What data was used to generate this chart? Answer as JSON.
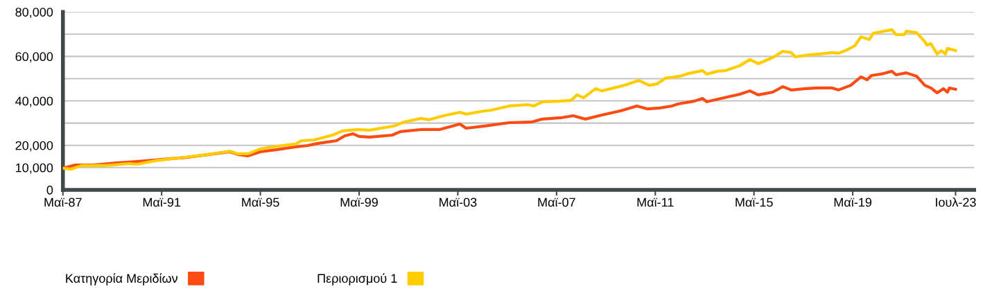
{
  "chart_data": {
    "type": "line",
    "legend": "bottom left",
    "grid": "y",
    "marker": "none",
    "line_style": "solid",
    "xlim": [
      "1987-05",
      "2024-04"
    ],
    "xticks": [
      {
        "value": "1987-05",
        "label": "Μαϊ-87"
      },
      {
        "value": "1991-05",
        "label": "Μαϊ-91"
      },
      {
        "value": "1995-05",
        "label": "Μαϊ-95"
      },
      {
        "value": "1999-05",
        "label": "Μαϊ-99"
      },
      {
        "value": "2003-05",
        "label": "Μαϊ-03"
      },
      {
        "value": "2007-05",
        "label": "Μαϊ-07"
      },
      {
        "value": "2011-05",
        "label": "Μαϊ-11"
      },
      {
        "value": "2015-05",
        "label": "Μαϊ-15"
      },
      {
        "value": "2019-05",
        "label": "Μαϊ-19"
      },
      {
        "value": "2023-07",
        "label": "Ιουλ-23"
      }
    ],
    "ylim": [
      0,
      80000
    ],
    "yticks": [
      0,
      {
        "value": 10000,
        "label": "10,000"
      },
      {
        "value": 20000,
        "label": "20,000"
      },
      {
        "value": 30000,
        "label": null
      },
      {
        "value": 40000,
        "label": "40,000"
      },
      {
        "value": 50000,
        "label": null
      },
      {
        "value": 60000,
        "label": "60,000"
      },
      {
        "value": 70000,
        "label": null
      },
      {
        "value": 80000,
        "label": "80,000"
      }
    ],
    "series": [
      {
        "name": "Κατηγορία Μεριδίων",
        "color": "#fc4c16",
        "x": [
          "1987-05",
          "1987-11",
          "1988-08",
          "1989-07",
          "1990-06",
          "1991-06",
          "1992-05",
          "1993-04",
          "1994-02",
          "1994-06",
          "1994-11",
          "1995-05",
          "1996-01",
          "1996-10",
          "1997-04",
          "1997-09",
          "1998-06",
          "1998-10",
          "1999-02",
          "1999-05",
          "1999-10",
          "2000-09",
          "2001-01",
          "2001-11",
          "2002-08",
          "2003-06",
          "2003-09",
          "2004-06",
          "2005-06",
          "2006-05",
          "2006-10",
          "2007-07",
          "2008-01",
          "2008-07",
          "2009-03",
          "2009-12",
          "2010-08",
          "2011-01",
          "2011-07",
          "2012-01",
          "2012-04",
          "2012-12",
          "2013-04",
          "2013-06",
          "2014-01",
          "2014-10",
          "2015-03",
          "2015-07",
          "2016-02",
          "2016-07",
          "2016-11",
          "2017-06",
          "2017-12",
          "2018-07",
          "2018-10",
          "2019-04",
          "2019-09",
          "2019-12",
          "2020-02",
          "2020-08",
          "2020-12",
          "2021-02",
          "2021-07",
          "2021-12",
          "2022-04",
          "2022-07",
          "2022-10",
          "2023-01",
          "2023-03",
          "2023-04",
          "2023-07"
        ],
        "values": [
          9700,
          11200,
          11200,
          12100,
          12800,
          13700,
          14600,
          15900,
          17100,
          15900,
          15300,
          17100,
          18100,
          19300,
          19900,
          20900,
          22100,
          24300,
          25200,
          24000,
          23700,
          24600,
          26200,
          27100,
          27100,
          29600,
          27700,
          28700,
          30200,
          30500,
          31800,
          32400,
          33300,
          31800,
          33600,
          35500,
          37700,
          36400,
          36800,
          37700,
          38600,
          39900,
          41100,
          39600,
          41100,
          43000,
          44500,
          42700,
          43900,
          46400,
          44900,
          45500,
          45800,
          45800,
          44900,
          47000,
          50800,
          49500,
          51400,
          52300,
          53300,
          51700,
          52600,
          51100,
          47000,
          45800,
          43600,
          45500,
          43900,
          45800,
          45200
        ]
      },
      {
        "name": "Περιορισμού 1",
        "color": "#ffcc00",
        "x": [
          "1987-05",
          "1987-09",
          "1988-02",
          "1989-02",
          "1990-01",
          "1990-05",
          "1991-02",
          "1992-01",
          "1993-01",
          "1993-10",
          "1994-02",
          "1994-06",
          "1994-11",
          "1995-05",
          "1996-01",
          "1996-10",
          "1997-01",
          "1997-07",
          "1998-04",
          "1998-09",
          "1999-04",
          "1999-10",
          "2000-10",
          "2001-03",
          "2001-11",
          "2002-03",
          "2002-10",
          "2003-06",
          "2003-09",
          "2004-04",
          "2004-09",
          "2005-06",
          "2006-03",
          "2006-06",
          "2006-10",
          "2007-07",
          "2007-12",
          "2008-03",
          "2008-06",
          "2008-12",
          "2009-03",
          "2010-02",
          "2010-09",
          "2011-02",
          "2011-06",
          "2011-10",
          "2012-05",
          "2012-09",
          "2013-04",
          "2013-06",
          "2013-11",
          "2014-03",
          "2014-10",
          "2015-03",
          "2015-07",
          "2016-02",
          "2016-07",
          "2016-11",
          "2017-01",
          "2017-08",
          "2018-01",
          "2018-07",
          "2018-10",
          "2019-02",
          "2019-06",
          "2019-09",
          "2020-01",
          "2020-03",
          "2020-08",
          "2020-12",
          "2021-02",
          "2021-06",
          "2021-07",
          "2021-12",
          "2022-04",
          "2022-05",
          "2022-07",
          "2022-10",
          "2022-12",
          "2023-02",
          "2023-03",
          "2023-07"
        ],
        "values": [
          9700,
          9300,
          10900,
          10900,
          11800,
          11500,
          13100,
          14300,
          15600,
          16800,
          17400,
          16200,
          16200,
          18400,
          19600,
          20600,
          22100,
          22400,
          24600,
          26500,
          27100,
          26800,
          28700,
          30500,
          32100,
          31500,
          33300,
          34900,
          34000,
          35200,
          35800,
          37700,
          38300,
          37700,
          39600,
          39900,
          40200,
          42700,
          41400,
          45500,
          44500,
          47000,
          49200,
          47000,
          47700,
          50200,
          51100,
          52300,
          53600,
          52000,
          53300,
          53600,
          55800,
          58600,
          56700,
          59500,
          62300,
          61700,
          59800,
          60700,
          61100,
          61700,
          61400,
          62900,
          64800,
          68800,
          67600,
          70400,
          71300,
          72000,
          69800,
          69800,
          71300,
          70700,
          66700,
          65100,
          65700,
          61100,
          62600,
          61100,
          63600,
          62600
        ]
      }
    ]
  }
}
